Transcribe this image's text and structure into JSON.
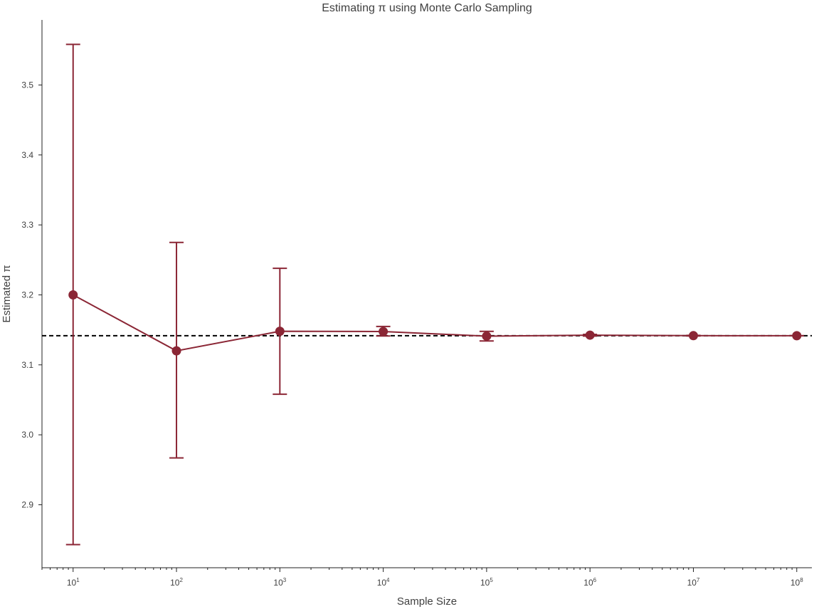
{
  "chart_data": {
    "type": "line",
    "title": "Estimating π using Monte Carlo Sampling",
    "xlabel": "Sample Size",
    "ylabel": "Estimated π",
    "xscale": "log",
    "xlim": [
      5,
      140000000
    ],
    "ylim": [
      2.81,
      3.593
    ],
    "grid": false,
    "legend": "none",
    "x_ticks": [
      {
        "base": "10",
        "exp": "1",
        "value": 10
      },
      {
        "base": "10",
        "exp": "2",
        "value": 100
      },
      {
        "base": "10",
        "exp": "3",
        "value": 1000
      },
      {
        "base": "10",
        "exp": "4",
        "value": 10000
      },
      {
        "base": "10",
        "exp": "5",
        "value": 100000
      },
      {
        "base": "10",
        "exp": "6",
        "value": 1000000
      },
      {
        "base": "10",
        "exp": "7",
        "value": 10000000
      },
      {
        "base": "10",
        "exp": "8",
        "value": 100000000
      }
    ],
    "y_ticks": [
      "2.9",
      "3.0",
      "3.1",
      "3.2",
      "3.3",
      "3.4",
      "3.5"
    ],
    "series": [
      {
        "x": [
          10,
          100,
          1000,
          10000,
          100000,
          1000000,
          10000000,
          100000000
        ],
        "y": [
          3.2,
          3.12,
          3.148,
          3.1476,
          3.14104,
          3.14243,
          3.14172,
          3.14162
        ],
        "err_low": [
          2.843,
          2.967,
          3.058,
          3.1413,
          3.1341,
          3.1411,
          3.1413,
          3.1415
        ],
        "err_high": [
          3.558,
          3.275,
          3.238,
          3.1549,
          3.1479,
          3.1435,
          3.1422,
          3.1418
        ],
        "color": "#8b2635"
      }
    ],
    "reference_line": {
      "y": 3.14159,
      "style": "dashed",
      "color": "#000000"
    }
  }
}
